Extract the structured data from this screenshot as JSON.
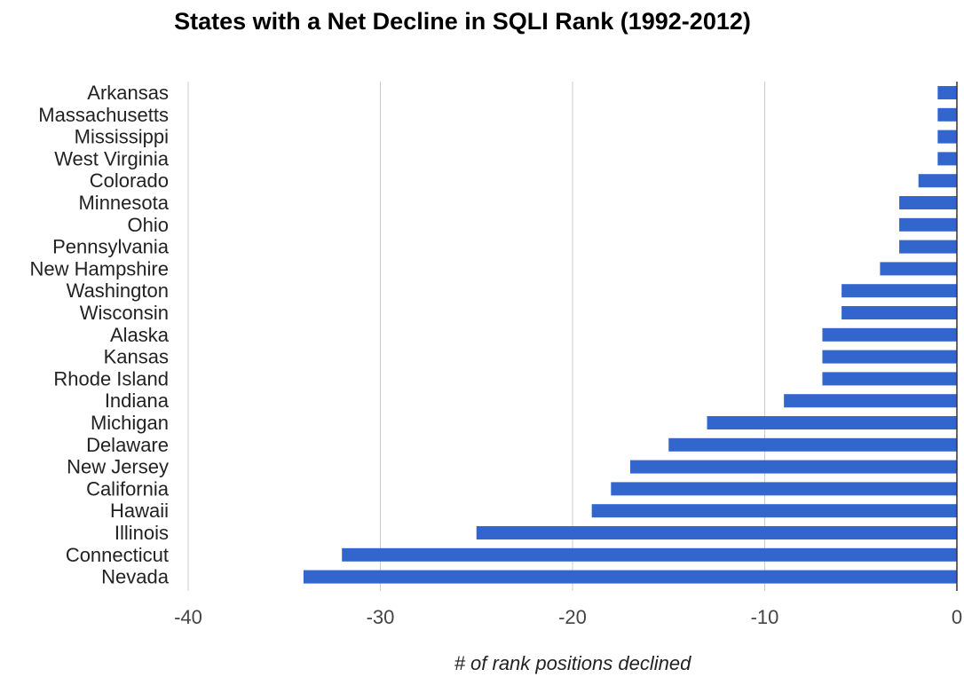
{
  "chart_data": {
    "type": "bar",
    "orientation": "horizontal",
    "title": "States with a Net Decline in SQLI Rank (1992-2012)",
    "xlabel": "# of rank positions declined",
    "ylabel": "",
    "xlim": [
      -40,
      0
    ],
    "ticks": [
      -40,
      -30,
      -20,
      -10,
      0
    ],
    "tick_labels": [
      "-40",
      "-30",
      "-20",
      "-10",
      "0"
    ],
    "grid": true,
    "legend": "none",
    "bar_color": "#3366cc",
    "categories": [
      "Arkansas",
      "Massachusetts",
      "Mississippi",
      "West Virginia",
      "Colorado",
      "Minnesota",
      "Ohio",
      "Pennsylvania",
      "New Hampshire",
      "Washington",
      "Wisconsin",
      "Alaska",
      "Kansas",
      "Rhode Island",
      "Indiana",
      "Michigan",
      "Delaware",
      "New Jersey",
      "California",
      "Hawaii",
      "Illinois",
      "Connecticut",
      "Nevada"
    ],
    "values": [
      -1,
      -1,
      -1,
      -1,
      -2,
      -3,
      -3,
      -3,
      -4,
      -6,
      -6,
      -7,
      -7,
      -7,
      -9,
      -13,
      -15,
      -17,
      -18,
      -19,
      -25,
      -32,
      -34
    ]
  }
}
